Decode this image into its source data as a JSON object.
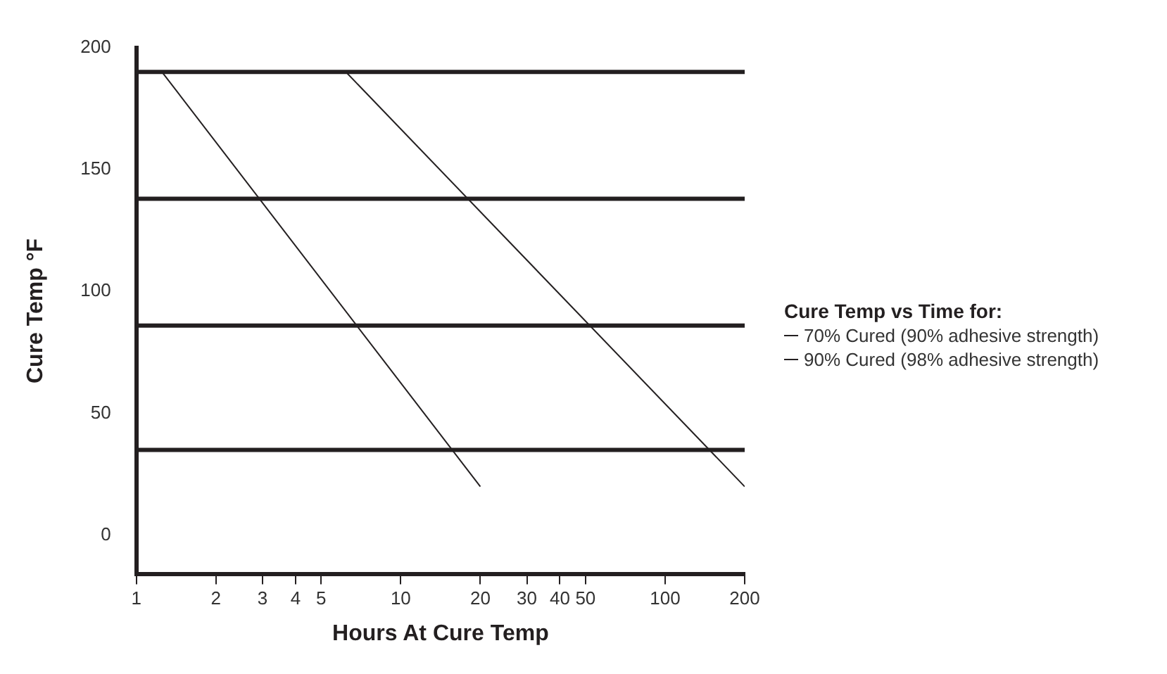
{
  "chart_data": {
    "type": "line",
    "xlabel": "Hours At Cure Temp",
    "ylabel": "Cure Temp °F",
    "legend_title": "Cure Temp vs Time for:",
    "log": "x",
    "xlim": [
      1,
      200
    ],
    "xticks": [
      1,
      2,
      3,
      4,
      5,
      10,
      20,
      30,
      40,
      50,
      100,
      200
    ],
    "ylim": [
      -16,
      200
    ],
    "yticks": [
      0,
      50,
      100,
      150,
      200
    ],
    "series": [
      {
        "name": "70% Cured (90% adhesive strength)",
        "color": "#231f20",
        "x": [
          1.25,
          20
        ],
        "values": [
          190,
          20
        ]
      },
      {
        "name": "90% Cured (98% adhesive strength)",
        "color": "#231f20",
        "x": [
          6.2,
          200
        ],
        "values": [
          190,
          20
        ]
      }
    ],
    "ref_lines": [
      {
        "axis": "y",
        "value": 190,
        "color": "#231f20"
      },
      {
        "axis": "y",
        "value": 138,
        "color": "#231f20"
      },
      {
        "axis": "y",
        "value": 86,
        "color": "#231f20"
      },
      {
        "axis": "y",
        "value": 35,
        "color": "#231f20"
      }
    ],
    "grid": false,
    "legend": "right",
    "marker": "none",
    "line_style": "solid"
  }
}
